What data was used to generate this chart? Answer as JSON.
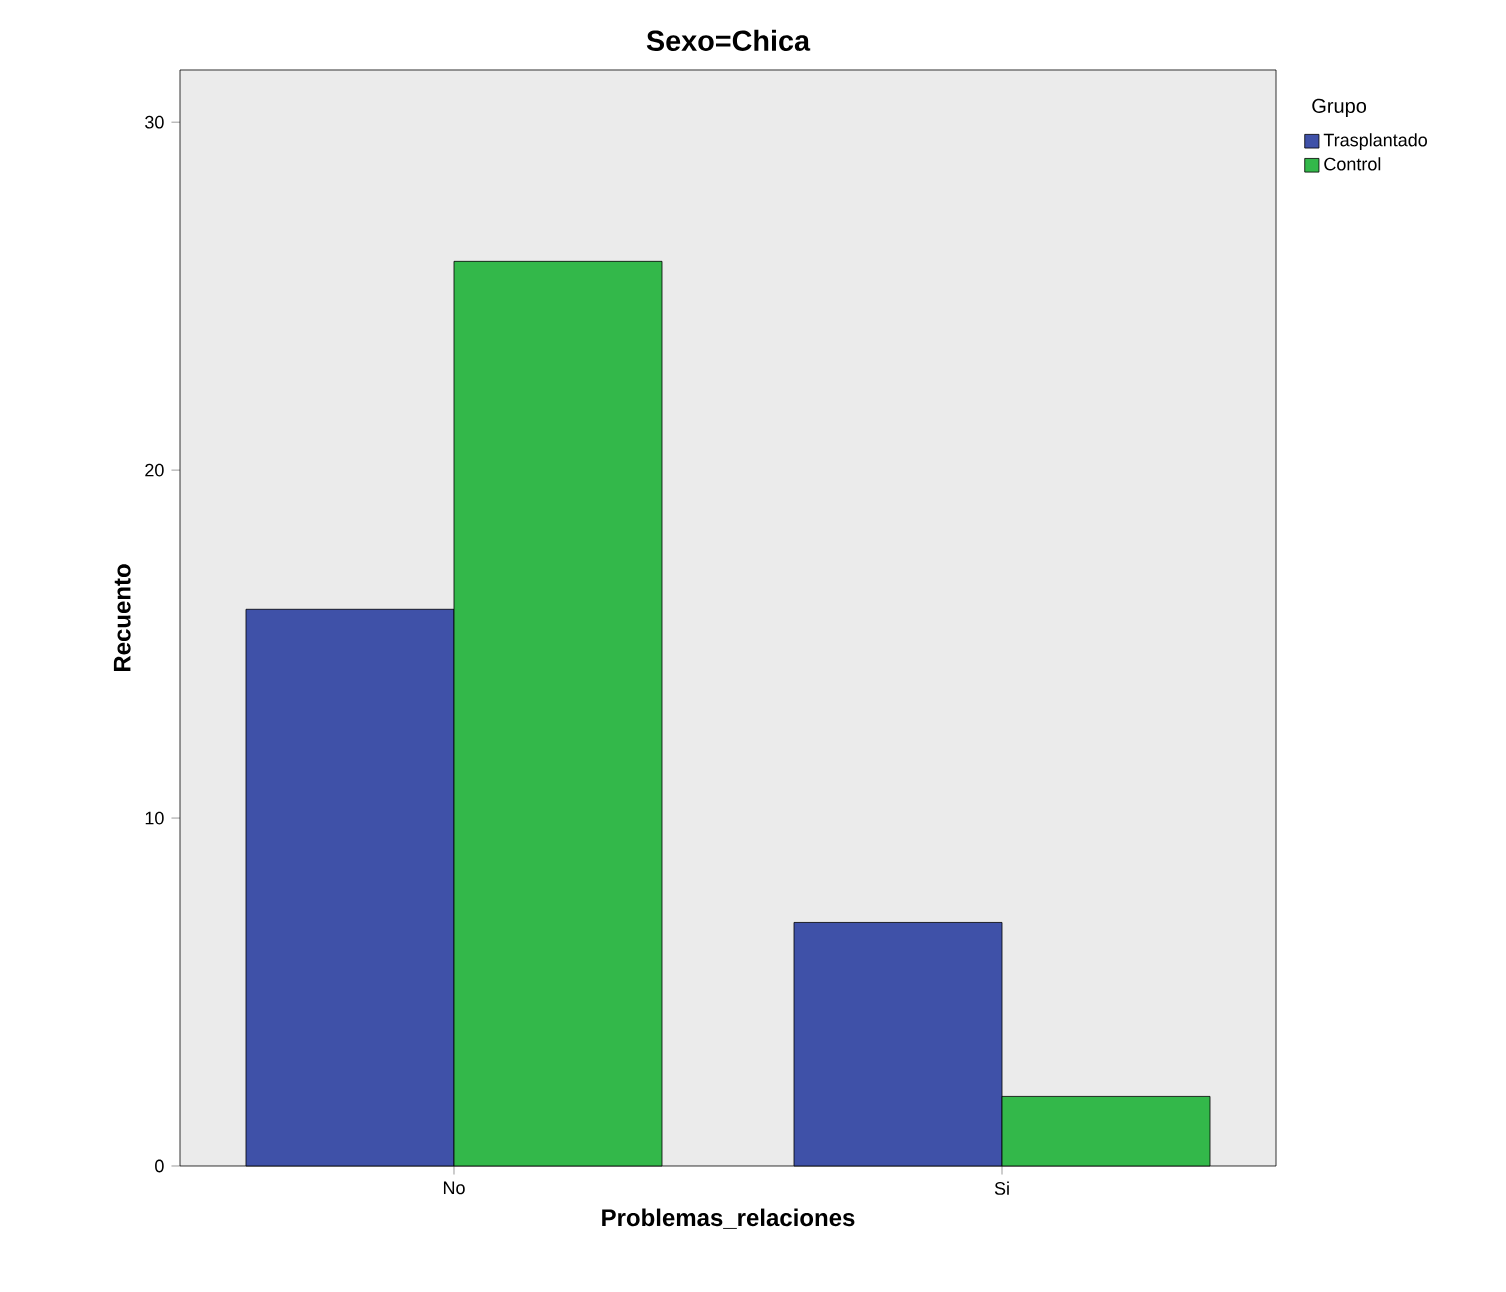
{
  "chart_data": {
    "type": "bar",
    "title": "Sexo=Chica",
    "xlabel": "Problemas_relaciones",
    "ylabel": "Recuento",
    "legend_title": "Grupo",
    "categories": [
      "No",
      "Si"
    ],
    "series": [
      {
        "name": "Trasplantado",
        "color": "#3f51a8",
        "values": [
          16,
          7
        ]
      },
      {
        "name": "Control",
        "color": "#33b84a",
        "values": [
          26,
          2
        ]
      }
    ],
    "ylim": [
      0,
      31.5
    ],
    "yticks": [
      0,
      10,
      20,
      30
    ],
    "legend": "top right"
  }
}
